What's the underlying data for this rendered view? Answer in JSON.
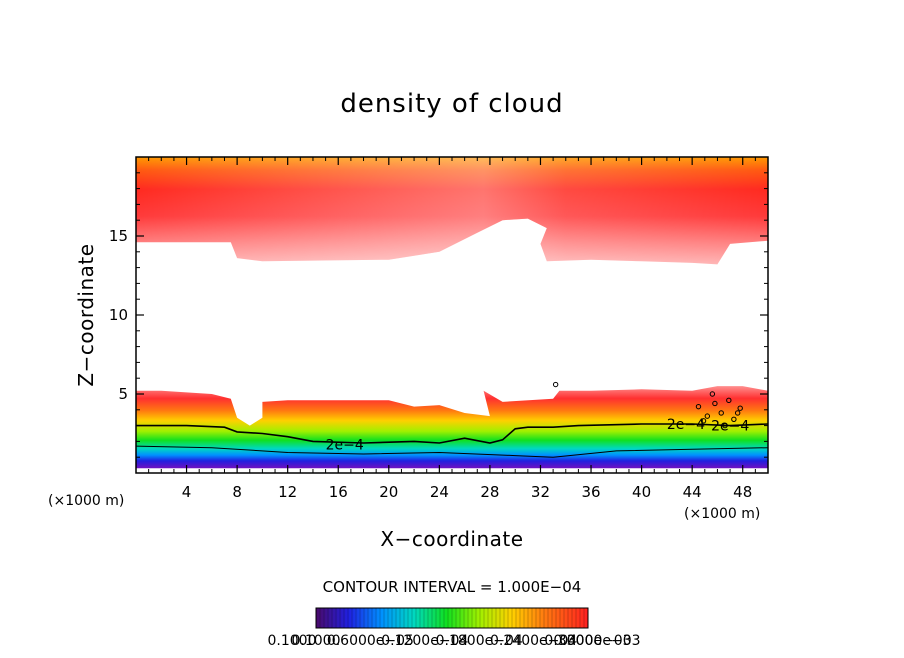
{
  "chart_data": {
    "type": "contour",
    "title": "density of cloud",
    "xlabel": "X−coordinate",
    "ylabel": "Z−coordinate",
    "x_unit_left": "(×1000 m)",
    "x_unit_right": "(×1000 m)",
    "xlim": [
      0,
      50
    ],
    "ylim": [
      0,
      20
    ],
    "x_ticks": [
      4,
      8,
      12,
      16,
      20,
      24,
      28,
      32,
      36,
      40,
      44,
      48
    ],
    "x_tick_labels": [
      "4",
      "8",
      "12",
      "16",
      "20",
      "24",
      "28",
      "32",
      "36",
      "40",
      "44",
      "48"
    ],
    "y_ticks": [
      5,
      10,
      15
    ],
    "y_tick_labels": [
      "5",
      "10",
      "15"
    ],
    "contour_interval_text": "CONTOUR INTERVAL = 1.000E−04",
    "contour_labels": [
      {
        "text": "2e−4",
        "x": 15,
        "z": 1.8
      },
      {
        "text": "2e−4",
        "x": 42,
        "z": 3.1
      },
      {
        "text": "2e−4",
        "x": 45.5,
        "z": 3.0
      }
    ],
    "upper_cloud": {
      "top": 20,
      "base": [
        [
          0,
          14.6
        ],
        [
          7.5,
          14.6
        ],
        [
          8,
          13.6
        ],
        [
          10,
          13.4
        ],
        [
          20,
          13.5
        ],
        [
          24,
          14.0
        ],
        [
          27,
          15.2
        ],
        [
          29,
          16.0
        ],
        [
          31,
          16.1
        ],
        [
          32.5,
          15.5
        ],
        [
          32,
          14.5
        ],
        [
          32.5,
          13.4
        ],
        [
          36,
          13.5
        ],
        [
          40,
          13.4
        ],
        [
          44,
          13.3
        ],
        [
          46,
          13.2
        ],
        [
          47,
          14.5
        ],
        [
          50,
          14.7
        ]
      ]
    },
    "lower_cloud": {
      "bottom": 0.3,
      "top": [
        [
          0,
          5.2
        ],
        [
          2,
          5.2
        ],
        [
          6,
          5.0
        ],
        [
          7.5,
          4.7
        ],
        [
          8,
          3.5
        ],
        [
          9,
          3.0
        ],
        [
          10,
          3.5
        ],
        [
          10,
          4.5
        ],
        [
          12,
          4.6
        ],
        [
          20,
          4.6
        ],
        [
          22,
          4.2
        ],
        [
          24,
          4.3
        ],
        [
          26,
          3.8
        ],
        [
          28,
          3.6
        ],
        [
          27.5,
          5.2
        ],
        [
          29,
          4.5
        ],
        [
          33,
          4.7
        ],
        [
          33.5,
          5.2
        ],
        [
          36,
          5.2
        ],
        [
          40,
          5.3
        ],
        [
          44,
          5.2
        ],
        [
          46,
          5.5
        ],
        [
          48,
          5.5
        ],
        [
          50,
          5.2
        ]
      ]
    },
    "colorbar": {
      "min_label": "0.1000",
      "max_label": "0.3000e−03",
      "tick_labels": [
        "0.1000",
        "0.6000e−05",
        "0.1200e−04",
        "0.1800e−04",
        "0.2400e−04",
        "0.3000e−03"
      ]
    }
  }
}
